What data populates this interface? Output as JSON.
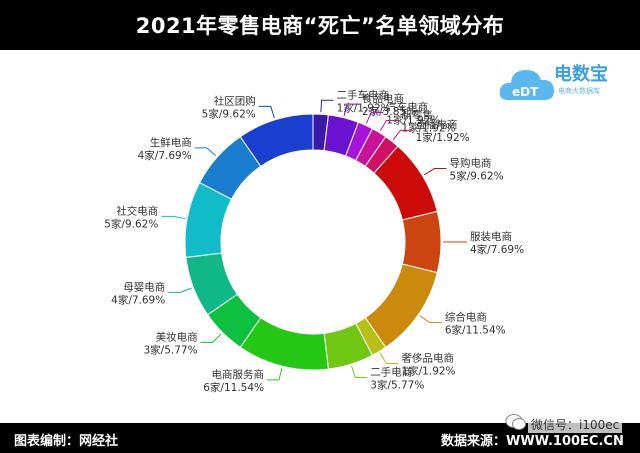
{
  "header": {
    "title": "2021年零售电商“死亡”名单领域分布"
  },
  "footer": {
    "left_text": "图表编制：网经社",
    "right_text": "数据来源：",
    "site": "WWW.100EC.CN"
  },
  "watermark": {
    "text": "微信号：i100ec",
    "icon": "wechat-icon"
  },
  "logo": {
    "text": "电数宝",
    "sub_text": "电商大数据库",
    "badge": "eDT"
  },
  "chart_data": {
    "type": "pie",
    "donut": true,
    "slices": [
      {
        "name": "二手车电商",
        "value": 1,
        "label": "1家/1.92%",
        "color": "#3a1aa8"
      },
      {
        "name": "食品电商",
        "value": 2,
        "label": "2家/3.85%",
        "color": "#6a12d0"
      },
      {
        "name": "汽车电商",
        "value": 1,
        "label": "1家/1.92%",
        "color": "#a514d8"
      },
      {
        "name": "新零售",
        "value": 1,
        "label": "1家/1.92%",
        "color": "#c8129a"
      },
      {
        "name": "直播电商",
        "value": 1,
        "label": "1家/1.92%",
        "color": "#d01060"
      },
      {
        "name": "导购电商",
        "value": 5,
        "label": "5家/9.62%",
        "color": "#cc0a0a"
      },
      {
        "name": "服装电商",
        "value": 4,
        "label": "4家/7.69%",
        "color": "#cc4410"
      },
      {
        "name": "综合电商",
        "value": 6,
        "label": "6家/11.54%",
        "color": "#cc8a0c"
      },
      {
        "name": "奢侈品电商",
        "value": 1,
        "label": "1家/1.92%",
        "color": "#b8c018"
      },
      {
        "name": "二手电商",
        "value": 3,
        "label": "3家/5.77%",
        "color": "#70c814"
      },
      {
        "name": "电商服务商",
        "value": 6,
        "label": "6家/11.54%",
        "color": "#24c814"
      },
      {
        "name": "美妆电商",
        "value": 3,
        "label": "3家/5.77%",
        "color": "#0ec040"
      },
      {
        "name": "母婴电商",
        "value": 4,
        "label": "4家/7.69%",
        "color": "#10b888"
      },
      {
        "name": "社交电商",
        "value": 5,
        "label": "5家/9.62%",
        "color": "#10bcc8"
      },
      {
        "name": "生鲜电商",
        "value": 4,
        "label": "4家/7.69%",
        "color": "#1a7ed0"
      },
      {
        "name": "社区团购",
        "value": 5,
        "label": "5家/9.62%",
        "color": "#1a3ed0"
      }
    ]
  }
}
